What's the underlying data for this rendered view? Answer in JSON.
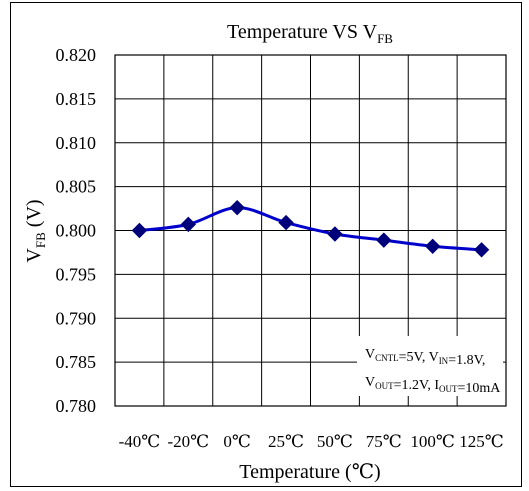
{
  "chart_data": {
    "type": "line",
    "title": {
      "main": "Temperature VS V",
      "sub": "FB"
    },
    "xlabel": "Temperature (℃)",
    "ylabel": {
      "main": "V",
      "sub": "FB",
      "suffix": " (V)"
    },
    "categories": [
      "-40℃",
      "-20℃",
      "0℃",
      "25℃",
      "50℃",
      "75℃",
      "100℃",
      "125℃"
    ],
    "series": [
      {
        "values": [
          0.8,
          0.8007,
          0.8026,
          0.8009,
          0.7996,
          0.7989,
          0.7982,
          0.7978
        ]
      }
    ],
    "yticks": [
      "0.820",
      "0.815",
      "0.810",
      "0.805",
      "0.800",
      "0.795",
      "0.790",
      "0.785",
      "0.780"
    ],
    "ylim": [
      0.78,
      0.82
    ],
    "grid": true,
    "line_color": "#0000cc",
    "marker": "diamond",
    "annotation": {
      "line1": [
        [
          "V",
          "CNTL"
        ],
        [
          "=5V, V",
          "IN"
        ],
        [
          "=1.8V,",
          ""
        ]
      ],
      "line2": [
        [
          "V",
          "OUT"
        ],
        [
          "=1.2V, I",
          "OUT"
        ],
        [
          "=10mA",
          ""
        ]
      ]
    }
  }
}
